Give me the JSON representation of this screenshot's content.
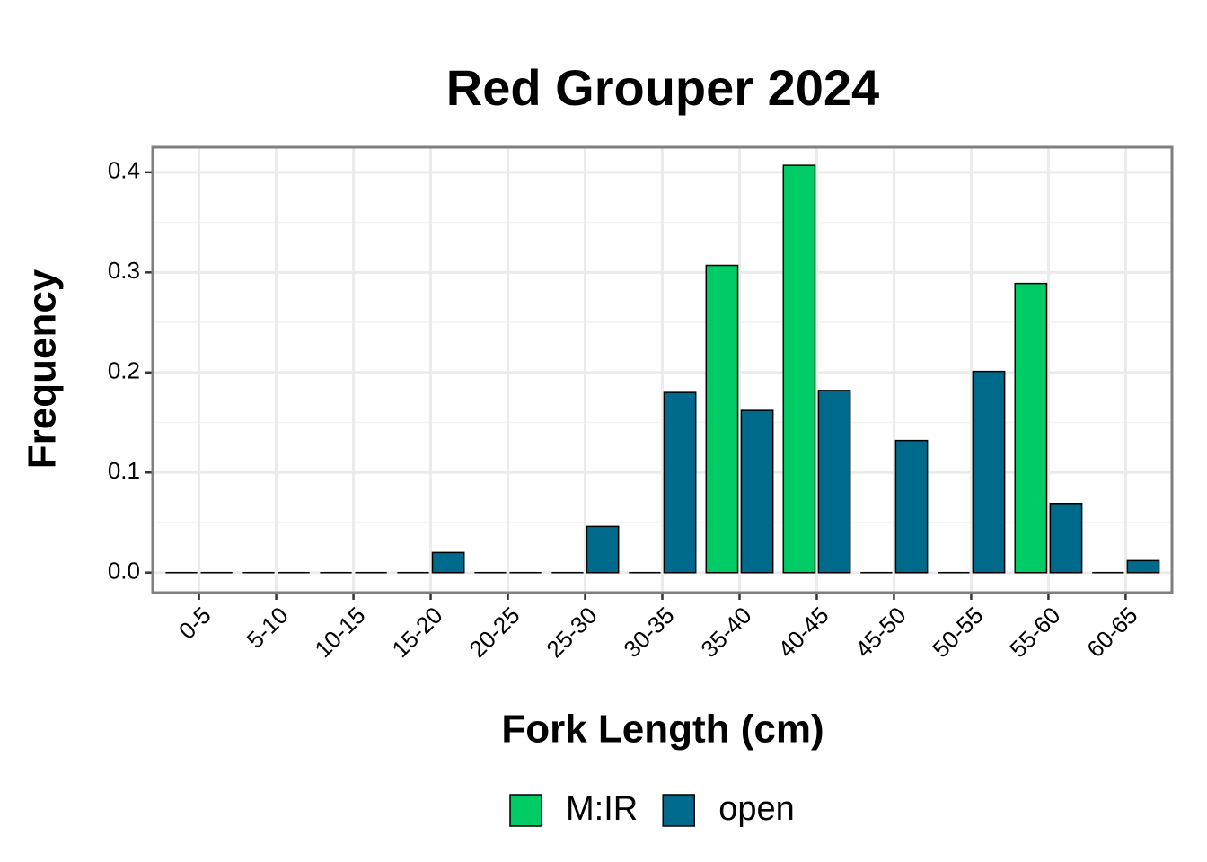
{
  "chart_data": {
    "type": "bar",
    "title": "Red Grouper 2024",
    "x_label": "Fork Length (cm)",
    "y_label": "Frequency",
    "categories": [
      "0-5",
      "5-10",
      "10-15",
      "15-20",
      "20-25",
      "25-30",
      "30-35",
      "35-40",
      "40-45",
      "45-50",
      "50-55",
      "55-60",
      "60-65"
    ],
    "series": [
      {
        "name": "M:IR",
        "color": "#00cc66",
        "values": [
          0,
          0,
          0,
          0,
          0,
          0,
          0,
          0.307,
          0.407,
          0,
          0,
          0.289,
          0
        ]
      },
      {
        "name": "open",
        "color": "#006a8c",
        "values": [
          0,
          0,
          0,
          0.02,
          0,
          0.046,
          0.18,
          0.162,
          0.182,
          0.132,
          0.201,
          0.069,
          0.012
        ]
      }
    ],
    "ylim": [
      -0.02,
      0.425
    ],
    "yticks": [
      {
        "value": 0,
        "label": "0.0"
      },
      0.1,
      0.2,
      0.3,
      0.4
    ],
    "grid": true,
    "legend": "bottom"
  }
}
